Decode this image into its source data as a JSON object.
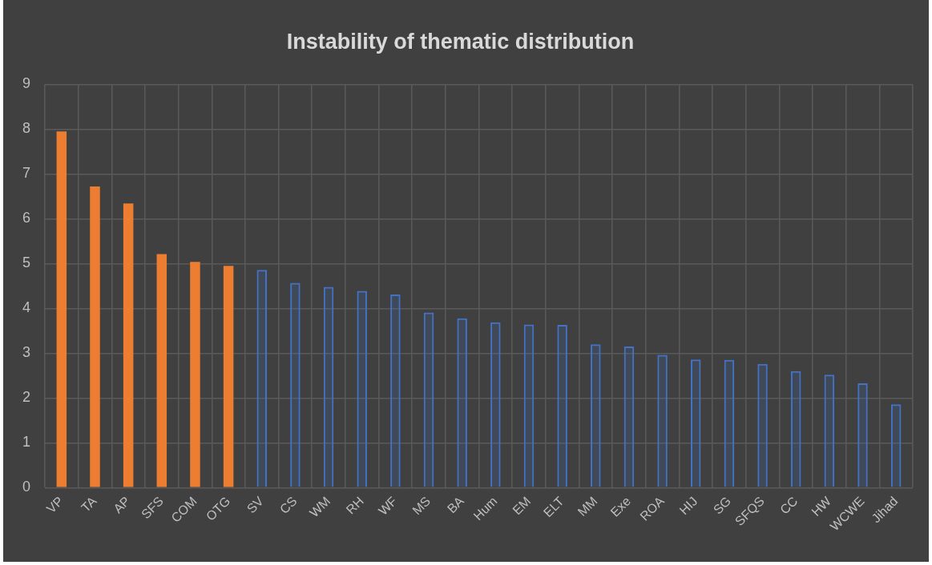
{
  "chart_data": {
    "type": "bar",
    "title": "Instability of thematic distribution",
    "categories": [
      "VP",
      "TA",
      "AP",
      "SFS",
      "COM",
      "OTG",
      "SV",
      "CS",
      "WM",
      "RH",
      "WF",
      "MS",
      "BA",
      "Hum",
      "EM",
      "ELT",
      "MM",
      "Exe",
      "ROA",
      "HIJ",
      "SG",
      "SFQS",
      "CC",
      "HW",
      "WCWE",
      "Jihad"
    ],
    "series": [
      {
        "color": "#4472c4",
        "colors": [
          "#ed7d31",
          "#ed7d31",
          "#ed7d31",
          "#ed7d31",
          "#ed7d31",
          "#ed7d31",
          "#4472c4",
          "#4472c4",
          "#4472c4",
          "#4472c4",
          "#4472c4",
          "#4472c4",
          "#4472c4",
          "#4472c4",
          "#4472c4",
          "#4472c4",
          "#4472c4",
          "#4472c4",
          "#4472c4",
          "#4472c4",
          "#4472c4",
          "#4472c4",
          "#4472c4",
          "#4472c4",
          "#4472c4",
          "#4472c4"
        ],
        "values": [
          7.95,
          6.72,
          6.34,
          5.21,
          5.04,
          4.95,
          4.86,
          4.57,
          4.48,
          4.39,
          4.31,
          3.91,
          3.78,
          3.69,
          3.64,
          3.63,
          3.2,
          3.15,
          2.96,
          2.86,
          2.85,
          2.76,
          2.6,
          2.52,
          2.33,
          1.86
        ]
      }
    ],
    "ylim": [
      0,
      9
    ],
    "yticks": [
      0,
      1,
      2,
      3,
      4,
      5,
      6,
      7,
      8,
      9
    ],
    "grid": true
  }
}
